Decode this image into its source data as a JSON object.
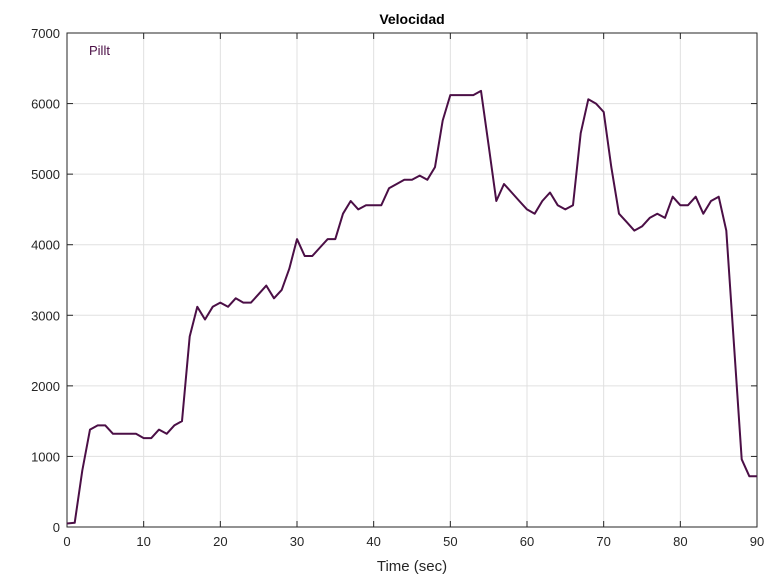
{
  "chart_data": {
    "type": "line",
    "title": "Velocidad",
    "xlabel": "Time (sec)",
    "ylabel": "",
    "xlim": [
      0,
      90
    ],
    "ylim": [
      0,
      7000
    ],
    "xticks": [
      0,
      10,
      20,
      30,
      40,
      50,
      60,
      70,
      80,
      90
    ],
    "yticks": [
      0,
      1000,
      2000,
      3000,
      4000,
      5000,
      6000,
      7000
    ],
    "grid": true,
    "legend_position": "top-left",
    "series": [
      {
        "name": "Pillt",
        "color": "#4b0f46",
        "x": [
          0,
          1,
          2,
          3,
          4,
          5,
          6,
          7,
          8,
          9,
          10,
          11,
          12,
          13,
          14,
          15,
          16,
          17,
          18,
          19,
          20,
          21,
          22,
          23,
          24,
          25,
          26,
          27,
          28,
          29,
          30,
          31,
          32,
          33,
          34,
          35,
          36,
          37,
          38,
          39,
          40,
          41,
          42,
          43,
          44,
          45,
          46,
          47,
          48,
          49,
          50,
          51,
          52,
          53,
          54,
          55,
          56,
          57,
          58,
          59,
          60,
          61,
          62,
          63,
          64,
          65,
          66,
          67,
          68,
          69,
          70,
          71,
          72,
          73,
          74,
          75,
          76,
          77,
          78,
          79,
          80,
          81,
          82,
          83,
          84,
          85,
          86,
          87,
          88,
          89,
          90
        ],
        "y": [
          50,
          60,
          800,
          1380,
          1440,
          1440,
          1320,
          1320,
          1320,
          1320,
          1260,
          1260,
          1380,
          1320,
          1440,
          1500,
          2700,
          3120,
          2940,
          3120,
          3180,
          3120,
          3240,
          3180,
          3180,
          3300,
          3420,
          3240,
          3360,
          3660,
          4080,
          3840,
          3840,
          3960,
          4080,
          4080,
          4440,
          4620,
          4500,
          4560,
          4560,
          4560,
          4800,
          4860,
          4920,
          4920,
          4980,
          4920,
          5100,
          5760,
          6120,
          6120,
          6120,
          6120,
          6180,
          5400,
          4620,
          4860,
          4740,
          4620,
          4500,
          4440,
          4620,
          4740,
          4560,
          4500,
          4560,
          5580,
          6060,
          6000,
          5880,
          5100,
          4440,
          4320,
          4200,
          4260,
          4380,
          4440,
          4380,
          4680,
          4560,
          4560,
          4680,
          4440,
          4620,
          4680,
          4200,
          2580,
          960,
          720,
          720
        ]
      }
    ]
  }
}
